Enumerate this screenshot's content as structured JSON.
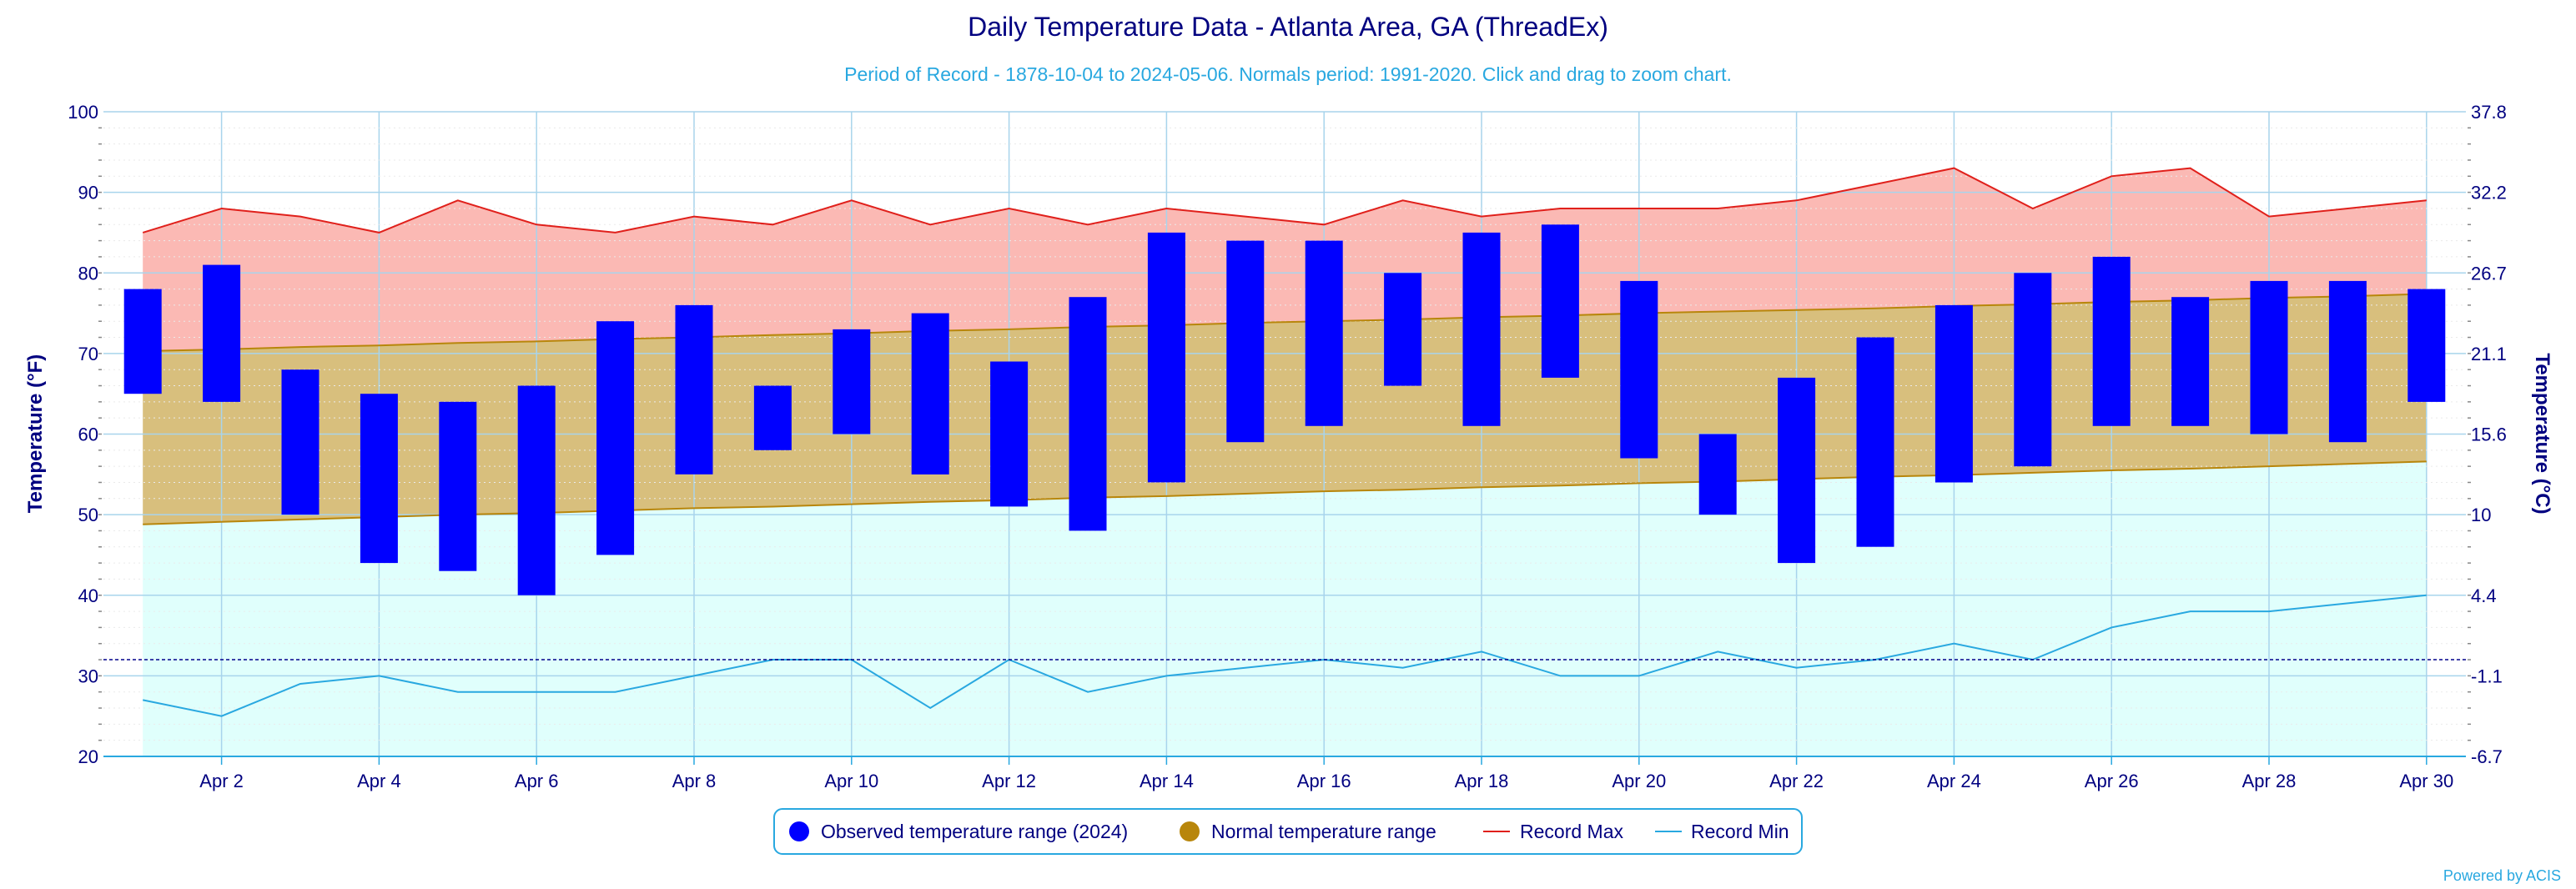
{
  "chart_data": {
    "type": "bar",
    "title": "Daily Temperature Data - Atlanta Area, GA (ThreadEx)",
    "subtitle": "Period of Record - 1878-10-04 to 2024-05-06. Normals period: 1991-2020. Click and drag to zoom chart.",
    "ylabel": "Temperature (°F)",
    "ylabel_right": "Temperature (°C)",
    "ylim": [
      20,
      100
    ],
    "y_ticks": [
      20,
      30,
      40,
      50,
      60,
      70,
      80,
      90,
      100
    ],
    "y_ticks_right": [
      "-6.7",
      "-1.1",
      "4.4",
      "10",
      "15.6",
      "21.1",
      "26.7",
      "32.2",
      "37.8"
    ],
    "x": [
      1,
      2,
      3,
      4,
      5,
      6,
      7,
      8,
      9,
      10,
      11,
      12,
      13,
      14,
      15,
      16,
      17,
      18,
      19,
      20,
      21,
      22,
      23,
      24,
      25,
      26,
      27,
      28,
      29,
      30
    ],
    "x_tick_labels": [
      "Apr 2",
      "Apr 4",
      "Apr 6",
      "Apr 8",
      "Apr 10",
      "Apr 12",
      "Apr 14",
      "Apr 16",
      "Apr 18",
      "Apr 20",
      "Apr 22",
      "Apr 24",
      "Apr 26",
      "Apr 28",
      "Apr 30"
    ],
    "x_tick_days": [
      2,
      4,
      6,
      8,
      10,
      12,
      14,
      16,
      18,
      20,
      22,
      24,
      26,
      28,
      30
    ],
    "dashed_line_value": 32,
    "grid": true,
    "legend_position": "bottom-center",
    "series": [
      {
        "name": "Observed temperature range (2024)",
        "color": "#0000ff",
        "low": [
          65,
          64,
          50,
          44,
          43,
          40,
          45,
          55,
          58,
          60,
          55,
          51,
          48,
          54,
          59,
          61,
          66,
          61,
          67,
          57,
          50,
          44,
          46,
          54,
          56,
          61,
          61,
          60,
          59,
          64
        ],
        "high": [
          78,
          81,
          68,
          65,
          64,
          66,
          74,
          76,
          66,
          73,
          75,
          69,
          77,
          85,
          84,
          84,
          80,
          85,
          86,
          79,
          60,
          67,
          72,
          76,
          80,
          82,
          77,
          79,
          79,
          78
        ]
      },
      {
        "name": "Normal temperature range",
        "color": "#b8860b",
        "low": [
          48.8,
          49.1,
          49.4,
          49.7,
          50.0,
          50.2,
          50.5,
          50.8,
          51.0,
          51.3,
          51.6,
          51.8,
          52.1,
          52.3,
          52.6,
          52.9,
          53.1,
          53.4,
          53.6,
          53.9,
          54.1,
          54.4,
          54.7,
          54.9,
          55.2,
          55.5,
          55.7,
          56.0,
          56.3,
          56.6
        ],
        "high": [
          70.3,
          70.5,
          70.8,
          71.0,
          71.3,
          71.5,
          71.8,
          72.0,
          72.3,
          72.5,
          72.8,
          73.0,
          73.3,
          73.5,
          73.8,
          74.0,
          74.2,
          74.5,
          74.7,
          75.0,
          75.2,
          75.4,
          75.6,
          75.9,
          76.1,
          76.4,
          76.6,
          76.9,
          77.1,
          77.4
        ]
      },
      {
        "name": "Record Max",
        "color": "#e0201b",
        "values": [
          85,
          88,
          87,
          85,
          89,
          86,
          85,
          87,
          86,
          89,
          86,
          88,
          86,
          88,
          87,
          86,
          89,
          87,
          88,
          88,
          88,
          89,
          91,
          93,
          88,
          92,
          93,
          87,
          88,
          89
        ]
      },
      {
        "name": "Record Min",
        "color": "#29a8e0",
        "values": [
          27,
          25,
          29,
          30,
          28,
          28,
          28,
          30,
          32,
          32,
          26,
          32,
          28,
          30,
          31,
          32,
          31,
          33,
          30,
          30,
          33,
          31,
          32,
          34,
          32,
          36,
          38,
          38,
          39,
          40
        ]
      }
    ]
  },
  "credits": "Powered by ACIS",
  "colors": {
    "title": "#000080",
    "subtitle": "#29a8e0",
    "record_max_fill": "#fbb9b4",
    "normal_fill": "#d8bf7d",
    "record_min_fill": "#e0fffc",
    "grid": "#a8d4ec",
    "dashed_line": "#00008b",
    "axis": "#29a8e0"
  }
}
